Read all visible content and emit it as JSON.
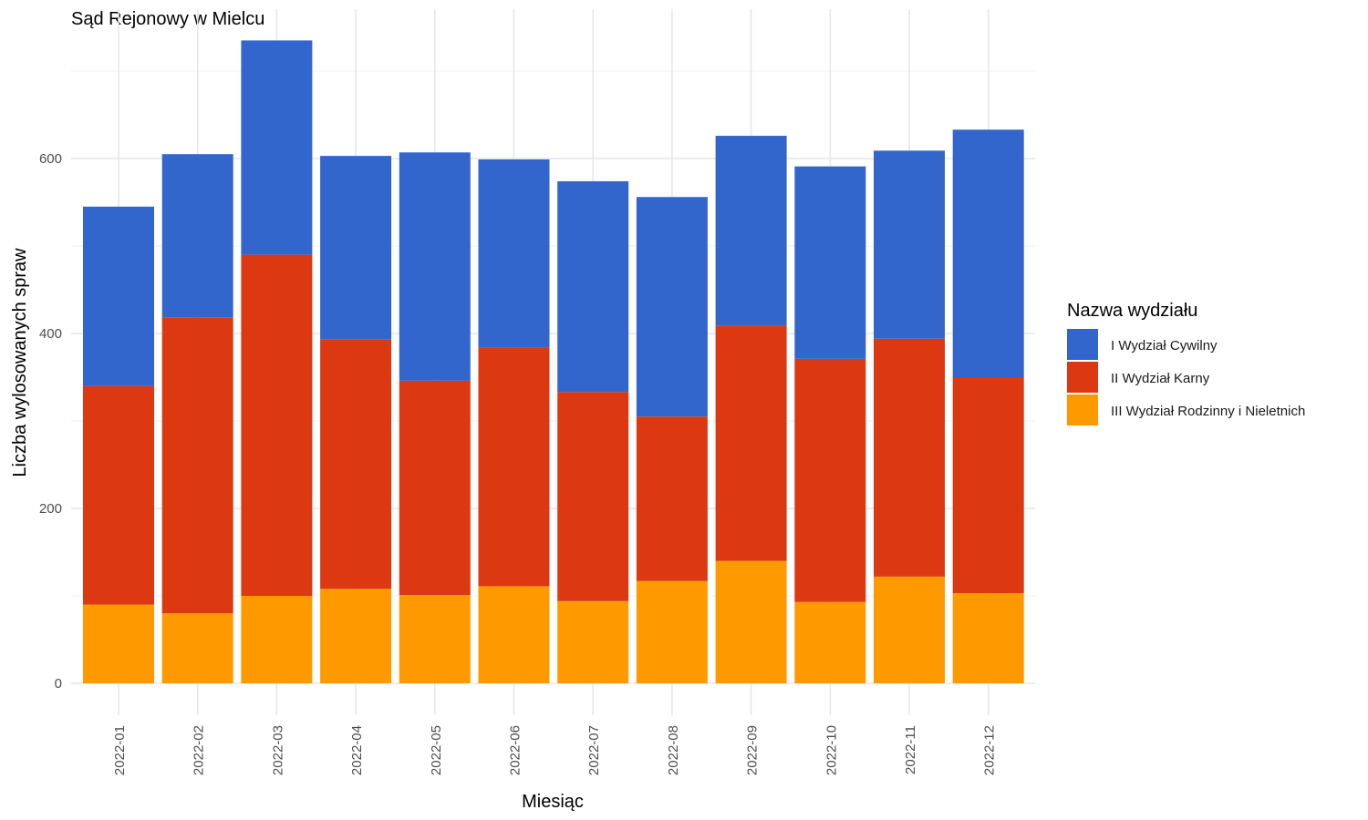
{
  "chart_data": {
    "type": "bar",
    "stacked": true,
    "title": "Sąd Rejonowy w Mielcu",
    "xlabel": "Miesiąc",
    "ylabel": "Liczba wylosowanych spraw",
    "ylim": [
      0,
      750
    ],
    "y_ticks": [
      0,
      200,
      400,
      600
    ],
    "grid": true,
    "legend_title": "Nazwa wydziału",
    "legend_position": "right",
    "categories": [
      "2022-01",
      "2022-02",
      "2022-03",
      "2022-04",
      "2022-05",
      "2022-06",
      "2022-07",
      "2022-08",
      "2022-09",
      "2022-10",
      "2022-11",
      "2022-12"
    ],
    "series": [
      {
        "name": "III Wydział Rodzinny i Nieletnich",
        "color": "#ff9900",
        "values": [
          90,
          80,
          100,
          108,
          101,
          111,
          94,
          117,
          140,
          93,
          122,
          103
        ]
      },
      {
        "name": "II Wydział Karny",
        "color": "#dc3912",
        "values": [
          250,
          338,
          390,
          285,
          245,
          273,
          239,
          188,
          269,
          278,
          272,
          247
        ]
      },
      {
        "name": "I Wydział Cywilny",
        "color": "#3366cc",
        "values": [
          205,
          187,
          245,
          210,
          261,
          215,
          241,
          251,
          217,
          220,
          215,
          283
        ]
      }
    ],
    "legend_order": [
      "I Wydział Cywilny",
      "II Wydział Karny",
      "III Wydział Rodzinny i Nieletnich"
    ]
  }
}
